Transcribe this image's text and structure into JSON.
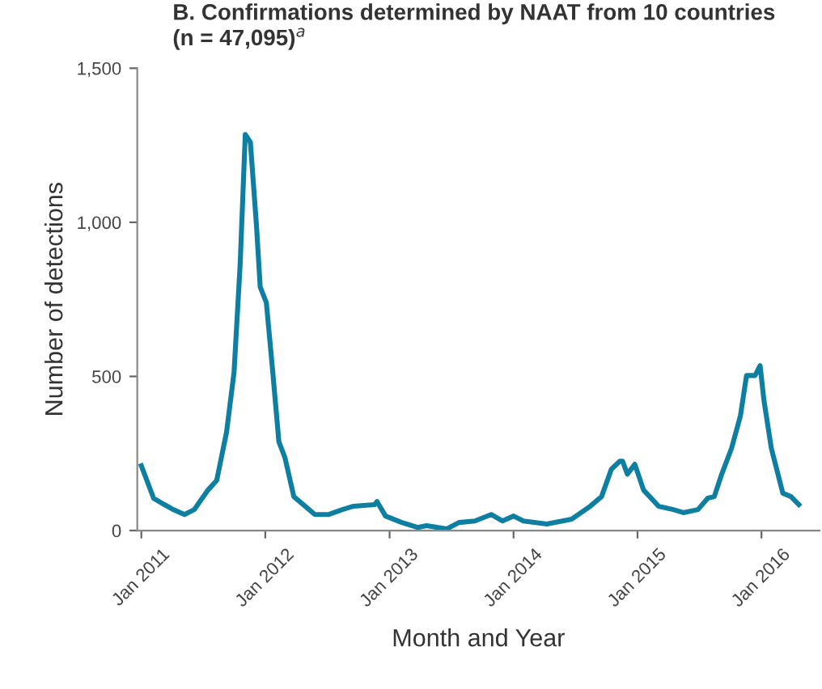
{
  "chart_data": {
    "type": "line",
    "title": "B. Confirmations determined by NAAT from 10 countries\n(n = 47,095)$^{a}$",
    "xlabel": "Month and Year",
    "ylabel": "Number of detections",
    "series": [
      {
        "color": "#0e7fa0",
        "x": [
          "2011-01-01",
          "2011-02-06",
          "2011-03-10",
          "2011-04-05",
          "2011-05-08",
          "2011-06-06",
          "2011-07-16",
          "2011-08-11",
          "2011-09-09",
          "2011-10-01",
          "2011-10-19",
          "2011-11-03",
          "2011-11-18",
          "2011-12-06",
          "2011-12-17",
          "2012-01-04",
          "2012-01-23",
          "2012-02-10",
          "2012-02-28",
          "2012-03-25",
          "2012-04-27",
          "2012-05-26",
          "2012-07-06",
          "2012-08-15",
          "2012-09-17",
          "2012-11-18",
          "2012-11-25",
          "2012-12-20",
          "2013-02-06",
          "2013-03-25",
          "2013-04-20",
          "2013-06-18",
          "2013-07-24",
          "2013-09-09",
          "2013-10-27",
          "2013-11-29",
          "2014-01-01",
          "2014-01-30",
          "2014-04-09",
          "2014-06-21",
          "2014-08-15",
          "2014-09-17",
          "2014-10-16",
          "2014-11-10",
          "2014-11-18",
          "2014-12-02",
          "2014-12-24",
          "2015-01-19",
          "2015-03-04",
          "2015-04-16",
          "2015-05-16",
          "2015-06-28",
          "2015-07-27",
          "2015-08-15",
          "2015-09-06",
          "2015-10-05",
          "2015-10-31",
          "2015-11-18",
          "2015-12-02",
          "2015-12-13",
          "2015-12-28",
          "2016-01-08",
          "2016-01-30",
          "2016-03-04",
          "2016-03-28",
          "2016-04-20"
        ],
        "values": [
          210,
          105,
          84,
          68,
          52,
          68,
          131,
          163,
          320,
          514,
          865,
          1285,
          1260,
          990,
          790,
          740,
          514,
          288,
          236,
          110,
          79,
          52,
          52,
          68,
          79,
          84,
          94,
          47,
          26,
          10,
          16,
          5,
          26,
          31,
          52,
          31,
          47,
          31,
          21,
          37,
          79,
          110,
          199,
          225,
          225,
          183,
          215,
          131,
          79,
          68,
          58,
          68,
          105,
          110,
          183,
          267,
          372,
          503,
          503,
          503,
          535,
          425,
          267,
          121,
          110,
          84
        ]
      }
    ],
    "xlim": [
      "2010-12-20",
      "2016-06-20"
    ],
    "xticks": [
      {
        "value": "2011-01-01",
        "label": "Jan 2011"
      },
      {
        "value": "2012-01-01",
        "label": "Jan 2012"
      },
      {
        "value": "2013-01-01",
        "label": "Jan 2013"
      },
      {
        "value": "2014-01-01",
        "label": "Jan 2014"
      },
      {
        "value": "2015-01-01",
        "label": "Jan 2015"
      },
      {
        "value": "2016-01-01",
        "label": "Jan 2016"
      }
    ],
    "ylim": [
      0,
      1500
    ],
    "yticks": [
      0,
      500,
      {
        "value": 1000,
        "label": "1,000"
      },
      {
        "value": 1500,
        "label": "1,500"
      }
    ],
    "grid": false,
    "legend": false,
    "marker": "none",
    "line_style": "solid"
  }
}
